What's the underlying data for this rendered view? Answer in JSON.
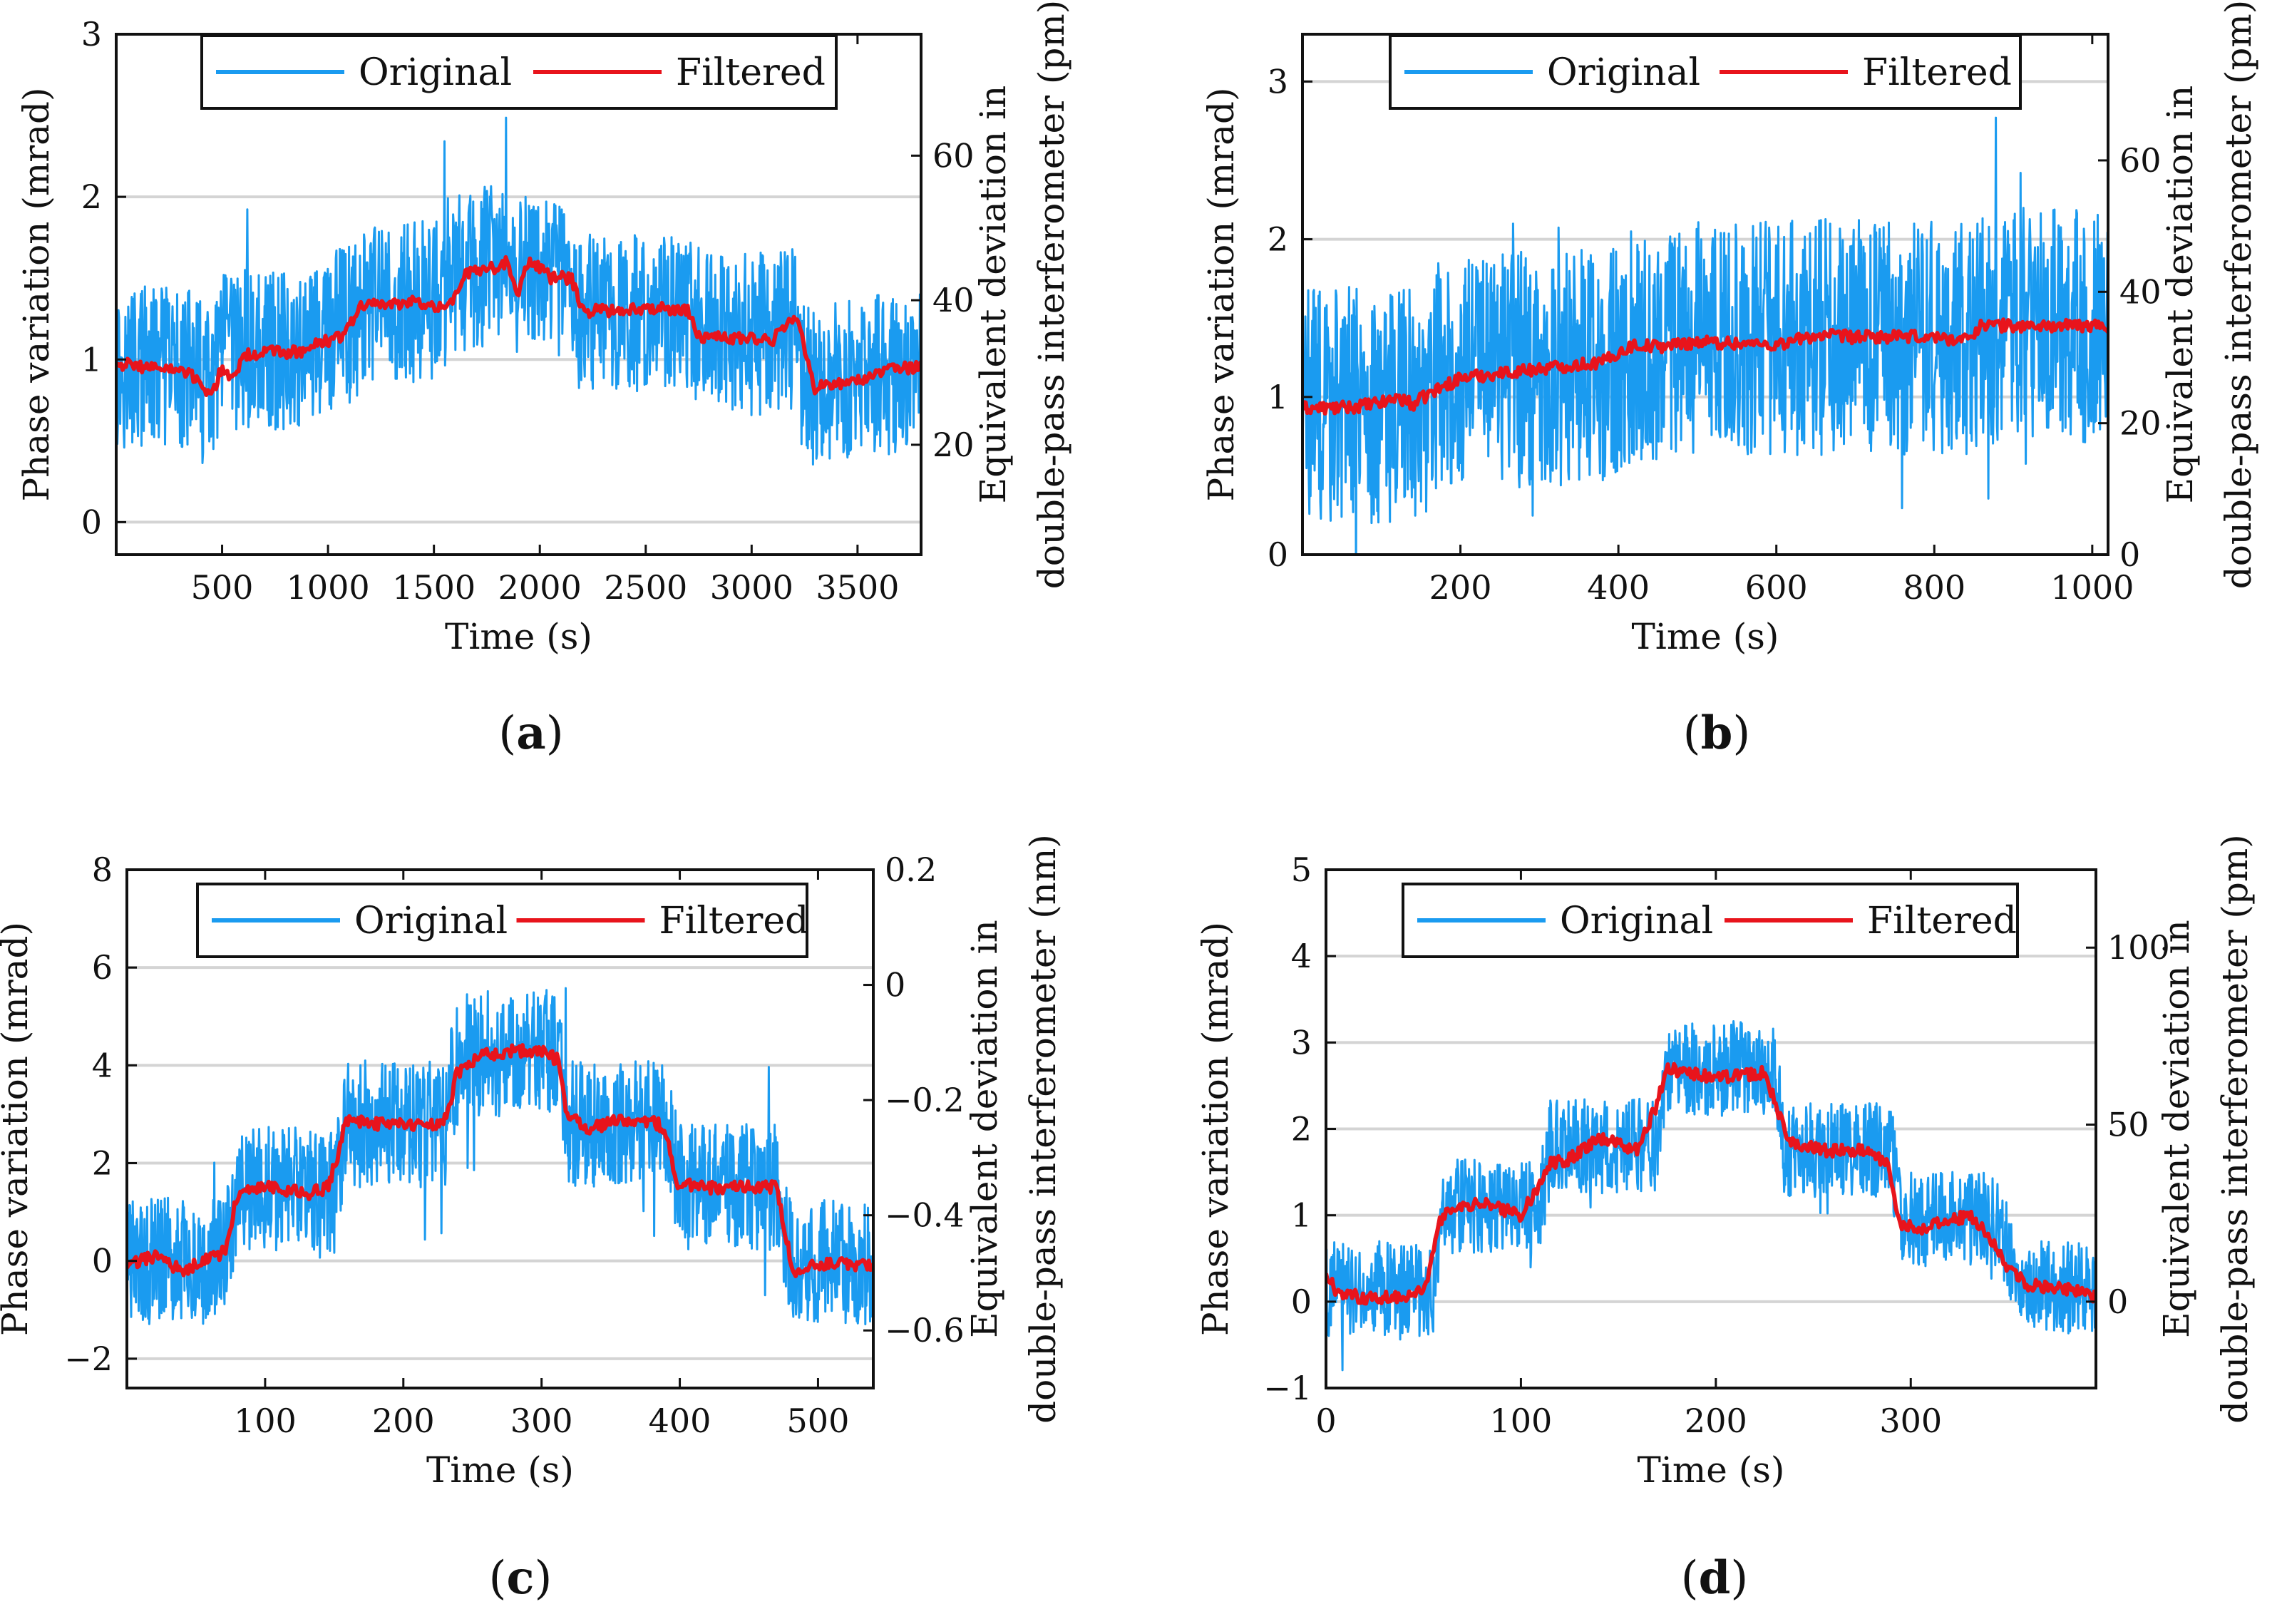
{
  "colors": {
    "original": "#1a9bf0",
    "filtered": "#e8141c",
    "grid": "#d4d4d4",
    "axis": "#111111"
  },
  "chart_data": [
    {
      "id": "a",
      "type": "line",
      "caption_letter": "a",
      "xlabel": "Time (s)",
      "ylabel": "Phase variation (mrad)",
      "y2label_line1": "Equivalent  deviation in",
      "y2label_line2": "double-pass interferometer (pm)",
      "xlim": [
        0,
        3800
      ],
      "ylim": [
        -0.2,
        3
      ],
      "y2lim": [
        4.8,
        76.8
      ],
      "xticks": [
        500,
        1000,
        1500,
        2000,
        2500,
        3000,
        3500
      ],
      "xtick_labels": [
        "500",
        "1000",
        "1500",
        "2000",
        "2500",
        "3000",
        "3500"
      ],
      "yticks": [
        0,
        1,
        2,
        3
      ],
      "ytick_labels": [
        "0",
        "1",
        "2",
        "3"
      ],
      "y2ticks": [
        20,
        40,
        60
      ],
      "y2tick_labels": [
        "20",
        "40",
        "60"
      ],
      "grid": "y",
      "legend": "top-center",
      "series": [
        {
          "name": "Original",
          "kind": "noise_band",
          "amplitude": 0.5,
          "x": [
            0,
            350,
            450,
            500,
            620,
            900,
            1080,
            1250,
            1500,
            1650,
            1800,
            1900,
            2000,
            2100,
            2180,
            2400,
            2700,
            2800,
            3000,
            3200,
            3260,
            3800
          ],
          "y": [
            0.95,
            0.95,
            0.78,
            1.05,
            1.05,
            1.08,
            1.2,
            1.35,
            1.35,
            1.55,
            1.6,
            1.5,
            1.55,
            1.5,
            1.3,
            1.28,
            1.3,
            1.15,
            1.15,
            1.2,
            0.82,
            0.95
          ]
        },
        {
          "name": "Filtered",
          "kind": "line",
          "x": [
            0,
            100,
            200,
            300,
            380,
            450,
            500,
            550,
            600,
            700,
            800,
            900,
            1000,
            1080,
            1150,
            1250,
            1400,
            1550,
            1600,
            1650,
            1750,
            1850,
            1900,
            1950,
            2050,
            2150,
            2200,
            2300,
            2500,
            2700,
            2750,
            2850,
            3000,
            3100,
            3220,
            3250,
            3300,
            3500,
            3700,
            3800
          ],
          "y": [
            0.98,
            0.96,
            0.95,
            0.93,
            0.88,
            0.78,
            0.95,
            0.88,
            1.02,
            1.05,
            1.04,
            1.06,
            1.12,
            1.15,
            1.33,
            1.34,
            1.35,
            1.33,
            1.38,
            1.53,
            1.55,
            1.6,
            1.4,
            1.62,
            1.5,
            1.5,
            1.3,
            1.3,
            1.32,
            1.3,
            1.15,
            1.13,
            1.13,
            1.12,
            1.28,
            1.05,
            0.82,
            0.88,
            0.95,
            0.95
          ]
        }
      ]
    },
    {
      "id": "b",
      "type": "line",
      "caption_letter": "b",
      "xlabel": "Time (s)",
      "ylabel": "Phase variation (mrad)",
      "y2label_line1": "Equivalent  deviation in",
      "y2label_line2": "double-pass interferometer (pm)",
      "xlim": [
        0,
        1020
      ],
      "ylim": [
        0,
        3.3
      ],
      "y2lim": [
        0,
        79.2
      ],
      "xticks": [
        200,
        400,
        600,
        800,
        1000
      ],
      "xtick_labels": [
        "200",
        "400",
        "600",
        "800",
        "1000"
      ],
      "yticks": [
        0,
        1,
        2,
        3
      ],
      "ytick_labels": [
        "0",
        "1",
        "2",
        "3"
      ],
      "y2ticks": [
        0,
        20,
        40,
        60
      ],
      "y2tick_labels": [
        "0",
        "20",
        "40",
        "60"
      ],
      "grid": "y",
      "legend": "top-center",
      "series": [
        {
          "name": "Original",
          "kind": "noise_band",
          "amplitude": 0.75,
          "x": [
            0,
            150,
            170,
            400,
            420,
            650,
            850,
            870,
            1020
          ],
          "y": [
            0.95,
            0.95,
            1.15,
            1.2,
            1.35,
            1.38,
            1.38,
            1.45,
            1.45
          ]
        },
        {
          "name": "Filtered",
          "kind": "line",
          "x": [
            0,
            50,
            100,
            120,
            140,
            160,
            200,
            300,
            380,
            400,
            420,
            450,
            500,
            600,
            650,
            700,
            800,
            840,
            860,
            900,
            1020
          ],
          "y": [
            0.93,
            0.93,
            0.96,
            1.0,
            0.95,
            1.02,
            1.12,
            1.18,
            1.22,
            1.28,
            1.33,
            1.32,
            1.35,
            1.33,
            1.39,
            1.38,
            1.38,
            1.36,
            1.46,
            1.45,
            1.45
          ]
        }
      ]
    },
    {
      "id": "c",
      "type": "line",
      "caption_letter": "c",
      "xlabel": "Time (s)",
      "ylabel": "Phase variation (mrad)",
      "y2label_line1": "Equivalent  deviation in",
      "y2label_line2": "double-pass interferometer (nm)",
      "xlim": [
        0,
        540
      ],
      "ylim": [
        -2.6,
        8
      ],
      "y2lim": [
        -0.7,
        0.2
      ],
      "xticks": [
        100,
        200,
        300,
        400,
        500
      ],
      "xtick_labels": [
        "100",
        "200",
        "300",
        "400",
        "500"
      ],
      "yticks": [
        -2,
        0,
        2,
        4,
        6,
        8
      ],
      "ytick_labels": [
        "−2",
        "0",
        "2",
        "4",
        "6",
        "8"
      ],
      "y2ticks": [
        -0.6,
        -0.4,
        -0.2,
        0,
        0.2
      ],
      "y2tick_labels": [
        "−0.6",
        "−0.4",
        "−0.2",
        "0",
        "0.2"
      ],
      "grid": "y",
      "legend": "top-center",
      "series": [
        {
          "name": "Original",
          "kind": "noise_band",
          "amplitude": 1.3,
          "x": [
            0,
            70,
            80,
            150,
            160,
            230,
            240,
            310,
            320,
            390,
            400,
            470,
            480,
            540
          ],
          "y": [
            0,
            0,
            1.5,
            1.5,
            2.8,
            2.8,
            4.2,
            4.3,
            2.8,
            2.8,
            1.5,
            1.5,
            0,
            0
          ]
        },
        {
          "name": "Filtered",
          "kind": "line",
          "x": [
            0,
            20,
            40,
            60,
            72,
            78,
            90,
            110,
            130,
            145,
            152,
            158,
            175,
            200,
            225,
            232,
            238,
            255,
            280,
            300,
            312,
            318,
            335,
            360,
            385,
            392,
            398,
            420,
            450,
            470,
            476,
            482,
            500,
            540
          ],
          "y": [
            -0.1,
            0.1,
            -0.2,
            0.05,
            0.2,
            1.2,
            1.5,
            1.5,
            1.35,
            1.5,
            2.1,
            2.9,
            2.8,
            2.8,
            2.8,
            2.95,
            3.8,
            4.2,
            4.3,
            4.3,
            4.1,
            3.0,
            2.7,
            2.9,
            2.8,
            2.4,
            1.6,
            1.5,
            1.5,
            1.5,
            0.6,
            -0.2,
            -0.05,
            -0.1
          ]
        }
      ]
    },
    {
      "id": "d",
      "type": "line",
      "caption_letter": "d",
      "xlabel": "Time (s)",
      "ylabel": "Phase variation (mrad)",
      "y2label_line1": "Equivalent  deviation in",
      "y2label_line2": "double-pass interferometer (pm)",
      "xlim": [
        0,
        395
      ],
      "ylim": [
        -1,
        5
      ],
      "y2lim": [
        -24.4,
        122
      ],
      "xticks": [
        0,
        100,
        200,
        300
      ],
      "xtick_labels": [
        "0",
        "100",
        "200",
        "300"
      ],
      "yticks": [
        -1,
        0,
        1,
        2,
        3,
        4,
        5
      ],
      "ytick_labels": [
        "−1",
        "0",
        "1",
        "2",
        "3",
        "4",
        "5"
      ],
      "y2ticks": [
        0,
        50,
        100
      ],
      "y2tick_labels": [
        "0",
        "50",
        "100"
      ],
      "grid": "y",
      "legend": "top-center",
      "series": [
        {
          "name": "Original",
          "kind": "noise_band",
          "amplitude": 0.55,
          "x": [
            0,
            55,
            60,
            110,
            115,
            170,
            175,
            230,
            235,
            290,
            295,
            345,
            355,
            395
          ],
          "y": [
            0.15,
            0.15,
            1.1,
            1.1,
            1.8,
            1.8,
            2.7,
            2.7,
            1.75,
            1.75,
            0.95,
            0.95,
            0.15,
            0.15
          ]
        },
        {
          "name": "Filtered",
          "kind": "line",
          "x": [
            0,
            5,
            20,
            40,
            52,
            58,
            65,
            80,
            100,
            108,
            115,
            125,
            140,
            160,
            170,
            175,
            185,
            200,
            225,
            232,
            238,
            255,
            275,
            288,
            294,
            305,
            330,
            340,
            350,
            360,
            380,
            395
          ],
          "y": [
            0.35,
            0.1,
            0.05,
            0.05,
            0.2,
            0.9,
            1.1,
            1.15,
            1.0,
            1.3,
            1.6,
            1.65,
            1.9,
            1.75,
            2.3,
            2.7,
            2.65,
            2.6,
            2.65,
            2.2,
            1.85,
            1.75,
            1.75,
            1.6,
            0.9,
            0.85,
            1.0,
            0.75,
            0.4,
            0.2,
            0.15,
            0.05
          ]
        }
      ]
    }
  ]
}
